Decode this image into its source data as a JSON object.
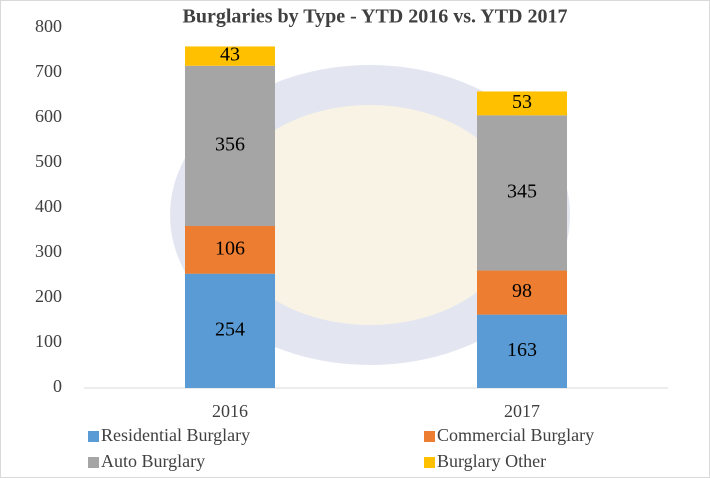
{
  "chart_data": {
    "type": "stacked_bar",
    "title": "Burglaries by Type - YTD 2016 vs. YTD 2017",
    "categories": [
      "2016",
      "2017"
    ],
    "series": [
      {
        "name": "Residential Burglary",
        "color": "#5b9bd5",
        "values": [
          254,
          163
        ]
      },
      {
        "name": "Commercial Burglary",
        "color": "#ed7d31",
        "values": [
          106,
          98
        ]
      },
      {
        "name": "Auto Burglary",
        "color": "#a5a5a5",
        "values": [
          356,
          345
        ]
      },
      {
        "name": "Burglary Other",
        "color": "#ffc000",
        "values": [
          43,
          53
        ]
      }
    ],
    "ylim": [
      0,
      800
    ],
    "yticks": [
      0,
      100,
      200,
      300,
      400,
      500,
      600,
      700,
      800
    ],
    "grid": false,
    "legend": "bottom"
  }
}
